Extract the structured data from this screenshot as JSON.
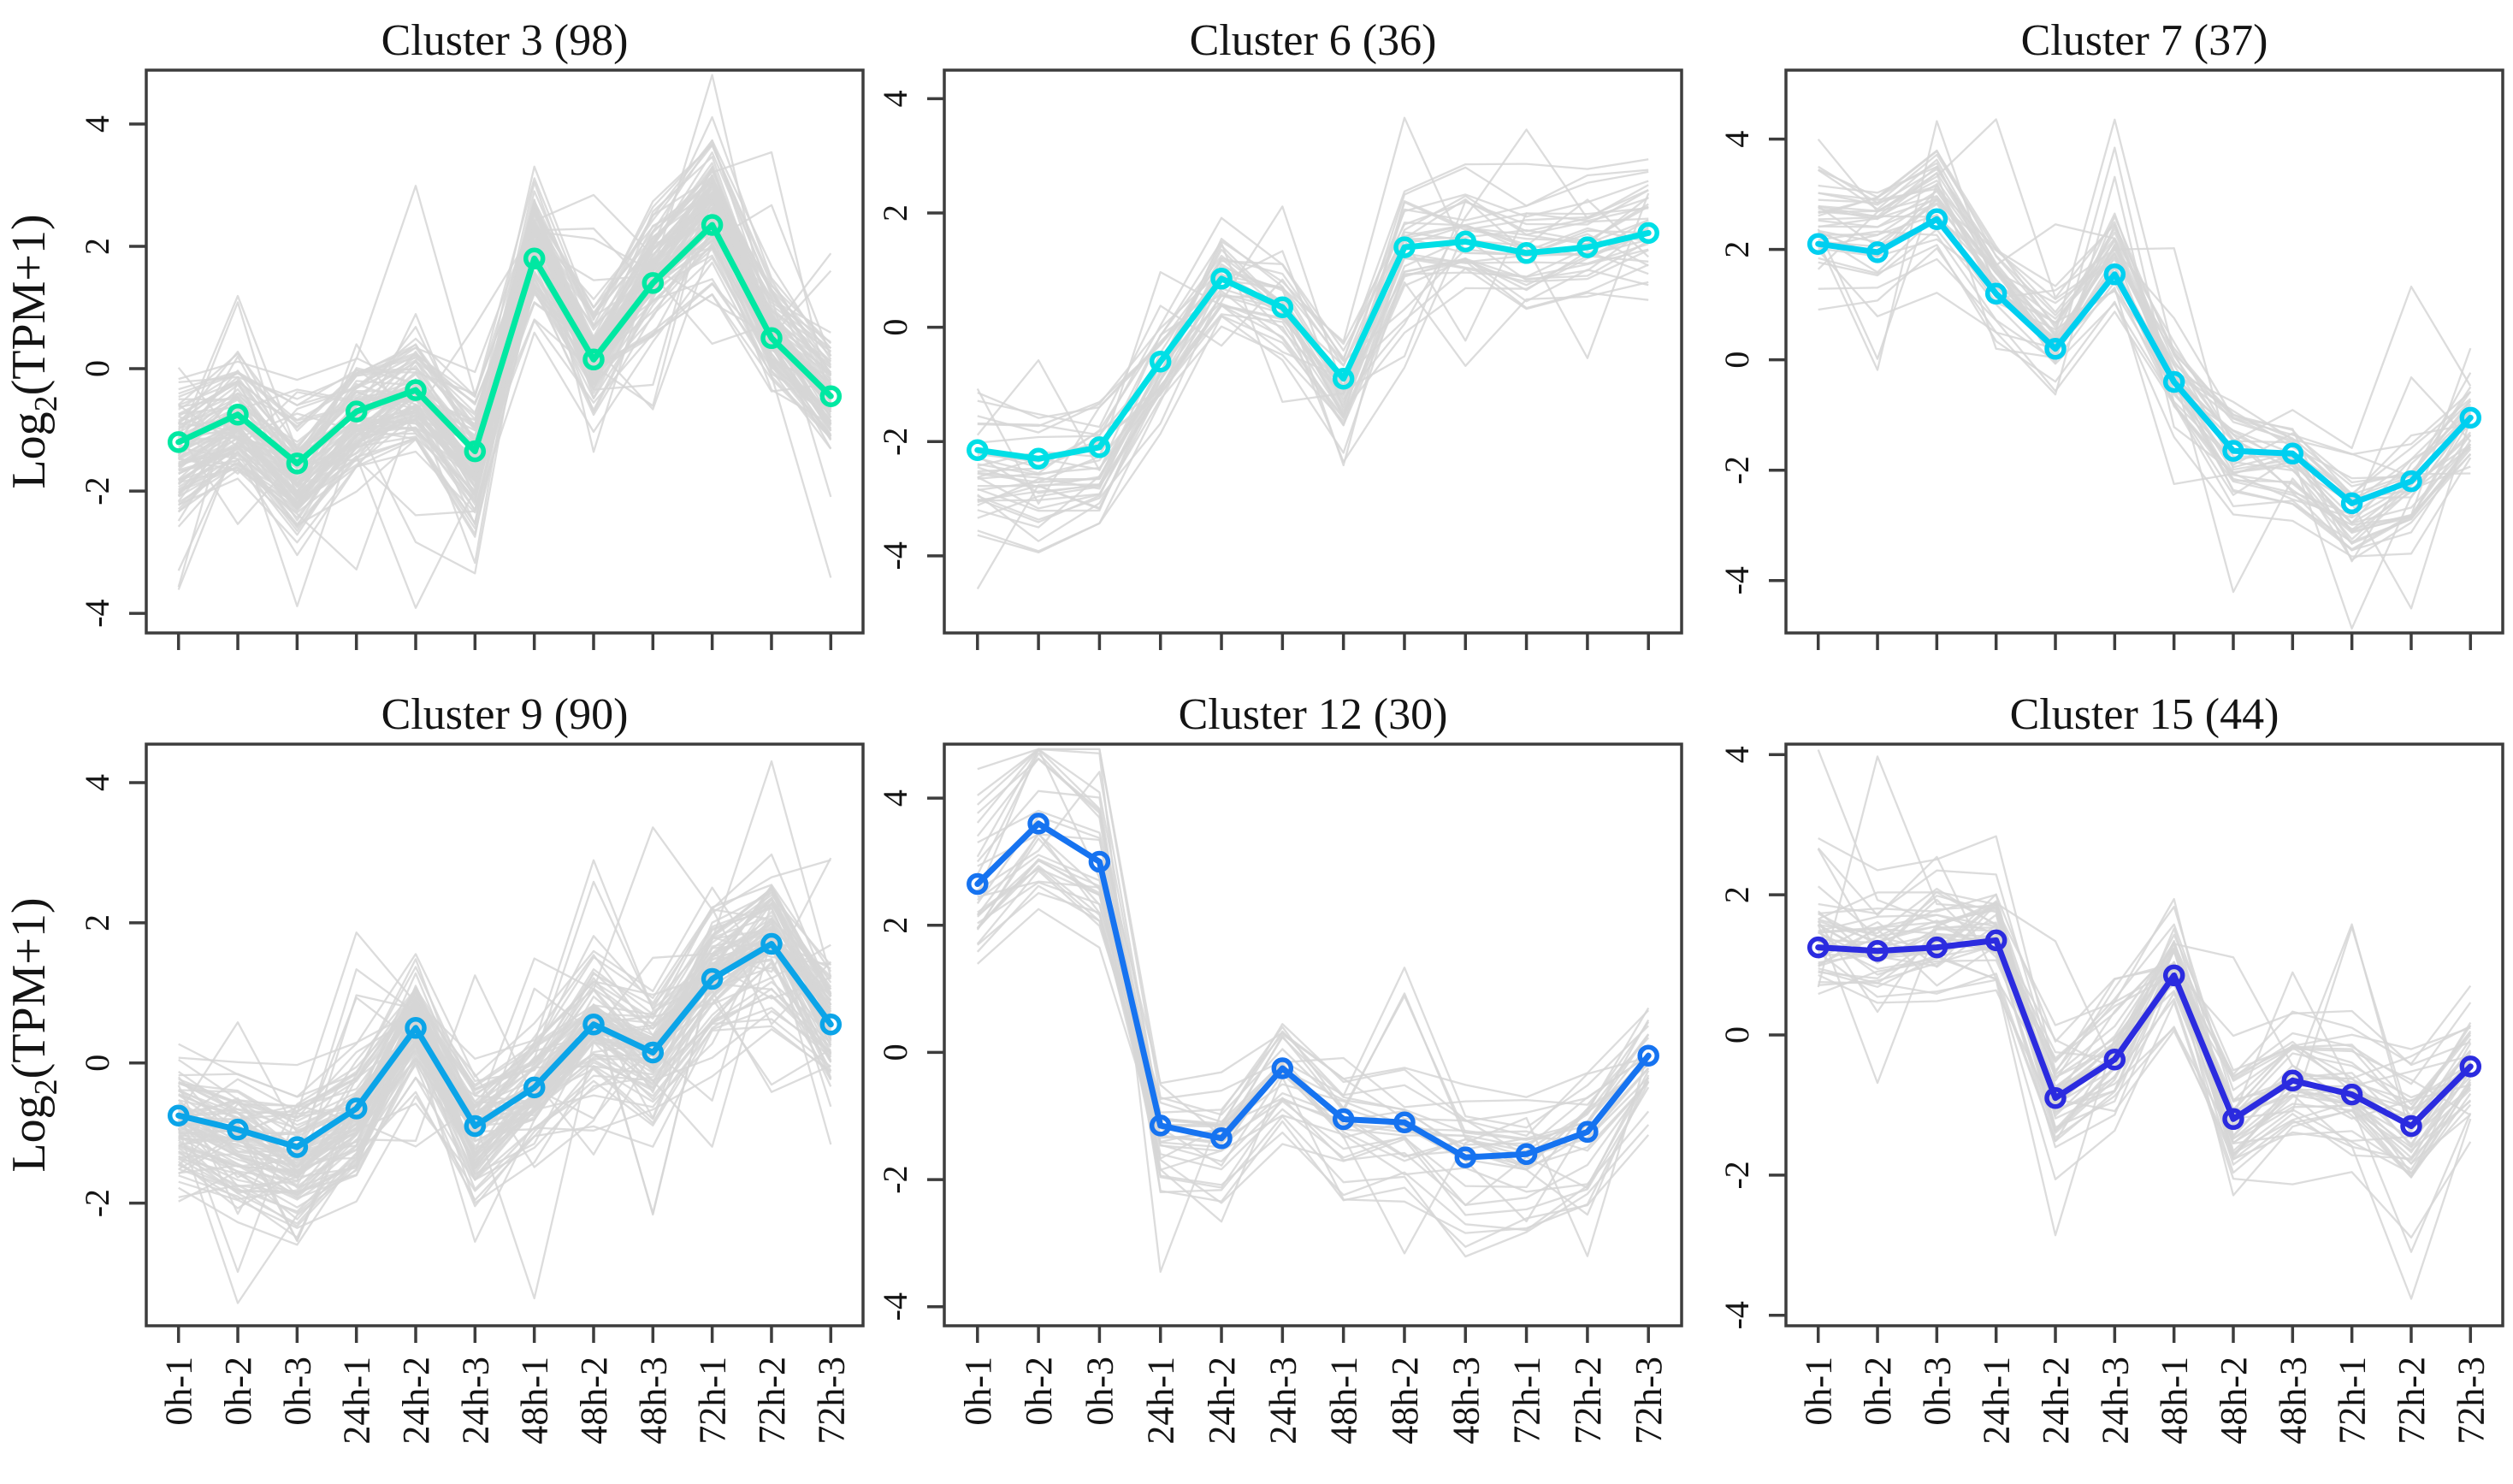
{
  "figure": {
    "ylabel": {
      "base": "Log",
      "sub": "2",
      "rest": "(TPM+1)"
    },
    "axis_color": "#3d3d3d",
    "text_color": "#141414",
    "background_line_color": "#d6d6d6",
    "background": "#ffffff"
  },
  "categories": [
    "0h-1",
    "0h-2",
    "0h-3",
    "24h-1",
    "24h-2",
    "24h-3",
    "48h-1",
    "48h-2",
    "48h-3",
    "72h-1",
    "72h-2",
    "72h-3"
  ],
  "chart_data": [
    {
      "type": "line",
      "title": "Cluster 3 (98)",
      "cluster": "Cluster 3",
      "n_genes": 98,
      "color": "#00E8A2",
      "categories": [
        "0h-1",
        "0h-2",
        "0h-3",
        "24h-1",
        "24h-2",
        "24h-3",
        "48h-1",
        "48h-2",
        "48h-3",
        "72h-1",
        "72h-2",
        "72h-3"
      ],
      "mean_values": [
        -1.2,
        -0.75,
        -1.55,
        -0.7,
        -0.35,
        -1.35,
        1.8,
        0.15,
        1.4,
        2.35,
        0.5,
        -0.45
      ],
      "ylim": [
        -4.32,
        4.88
      ],
      "yticks": [
        -4,
        -2,
        0,
        2,
        4
      ],
      "ylabel": "Log2(TPM+1)",
      "show_x_labels": false,
      "show_y_label": true,
      "legend": "none",
      "grid": false
    },
    {
      "type": "line",
      "title": "Cluster 6 (36)",
      "cluster": "Cluster 6",
      "n_genes": 36,
      "color": "#00DFE6",
      "categories": [
        "0h-1",
        "0h-2",
        "0h-3",
        "24h-1",
        "24h-2",
        "24h-3",
        "48h-1",
        "48h-2",
        "48h-3",
        "72h-1",
        "72h-2",
        "72h-3"
      ],
      "mean_values": [
        -2.15,
        -2.3,
        -2.1,
        -0.6,
        0.85,
        0.35,
        -0.9,
        1.4,
        1.5,
        1.3,
        1.4,
        1.65
      ],
      "ylim": [
        -5.35,
        4.5
      ],
      "yticks": [
        -4,
        -2,
        0,
        2,
        4
      ],
      "ylabel": "Log2(TPM+1)",
      "show_x_labels": false,
      "show_y_label": false,
      "legend": "none",
      "grid": false
    },
    {
      "type": "line",
      "title": "Cluster 7 (37)",
      "cluster": "Cluster 7",
      "n_genes": 37,
      "color": "#00CFF0",
      "categories": [
        "0h-1",
        "0h-2",
        "0h-3",
        "24h-1",
        "24h-2",
        "24h-3",
        "48h-1",
        "48h-2",
        "48h-3",
        "72h-1",
        "72h-2",
        "72h-3"
      ],
      "mean_values": [
        2.1,
        1.95,
        2.55,
        1.2,
        0.2,
        1.55,
        -0.4,
        -1.65,
        -1.7,
        -2.6,
        -2.2,
        -1.05
      ],
      "ylim": [
        -4.95,
        5.25
      ],
      "yticks": [
        -4,
        -2,
        0,
        2,
        4
      ],
      "ylabel": "Log2(TPM+1)",
      "show_x_labels": false,
      "show_y_label": false,
      "legend": "none",
      "grid": false
    },
    {
      "type": "line",
      "title": "Cluster 9 (90)",
      "cluster": "Cluster 9",
      "n_genes": 90,
      "color": "#0BA4E8",
      "categories": [
        "0h-1",
        "0h-2",
        "0h-3",
        "24h-1",
        "24h-2",
        "24h-3",
        "48h-1",
        "48h-2",
        "48h-3",
        "72h-1",
        "72h-2",
        "72h-3"
      ],
      "mean_values": [
        -0.75,
        -0.95,
        -1.2,
        -0.65,
        0.5,
        -0.9,
        -0.35,
        0.55,
        0.15,
        1.2,
        1.7,
        0.55
      ],
      "ylim": [
        -3.75,
        4.55
      ],
      "yticks": [
        -2,
        0,
        2,
        4
      ],
      "ylabel": "Log2(TPM+1)",
      "show_x_labels": true,
      "show_y_label": true,
      "legend": "none",
      "grid": false
    },
    {
      "type": "line",
      "title": "Cluster 12 (30)",
      "cluster": "Cluster 12",
      "n_genes": 30,
      "color": "#1673F0",
      "categories": [
        "0h-1",
        "0h-2",
        "0h-3",
        "24h-1",
        "24h-2",
        "24h-3",
        "48h-1",
        "48h-2",
        "48h-3",
        "72h-1",
        "72h-2",
        "72h-3"
      ],
      "mean_values": [
        2.65,
        3.6,
        3.0,
        -1.15,
        -1.35,
        -0.25,
        -1.05,
        -1.1,
        -1.65,
        -1.6,
        -1.25,
        -0.05
      ],
      "ylim": [
        -4.3,
        4.85
      ],
      "yticks": [
        -4,
        -2,
        0,
        2,
        4
      ],
      "ylabel": "Log2(TPM+1)",
      "show_x_labels": true,
      "show_y_label": false,
      "legend": "none",
      "grid": false
    },
    {
      "type": "line",
      "title": "Cluster 15 (44)",
      "cluster": "Cluster 15",
      "n_genes": 44,
      "color": "#2B2BDF",
      "categories": [
        "0h-1",
        "0h-2",
        "0h-3",
        "24h-1",
        "24h-2",
        "24h-3",
        "48h-1",
        "48h-2",
        "48h-3",
        "72h-1",
        "72h-2",
        "72h-3"
      ],
      "mean_values": [
        1.25,
        1.2,
        1.25,
        1.35,
        -0.9,
        -0.35,
        0.85,
        -1.2,
        -0.65,
        -0.85,
        -1.3,
        -0.45
      ],
      "ylim": [
        -4.15,
        4.15
      ],
      "yticks": [
        -4,
        -2,
        0,
        2,
        4
      ],
      "ylabel": "Log2(TPM+1)",
      "show_x_labels": true,
      "show_y_label": false,
      "legend": "none",
      "grid": false
    }
  ]
}
